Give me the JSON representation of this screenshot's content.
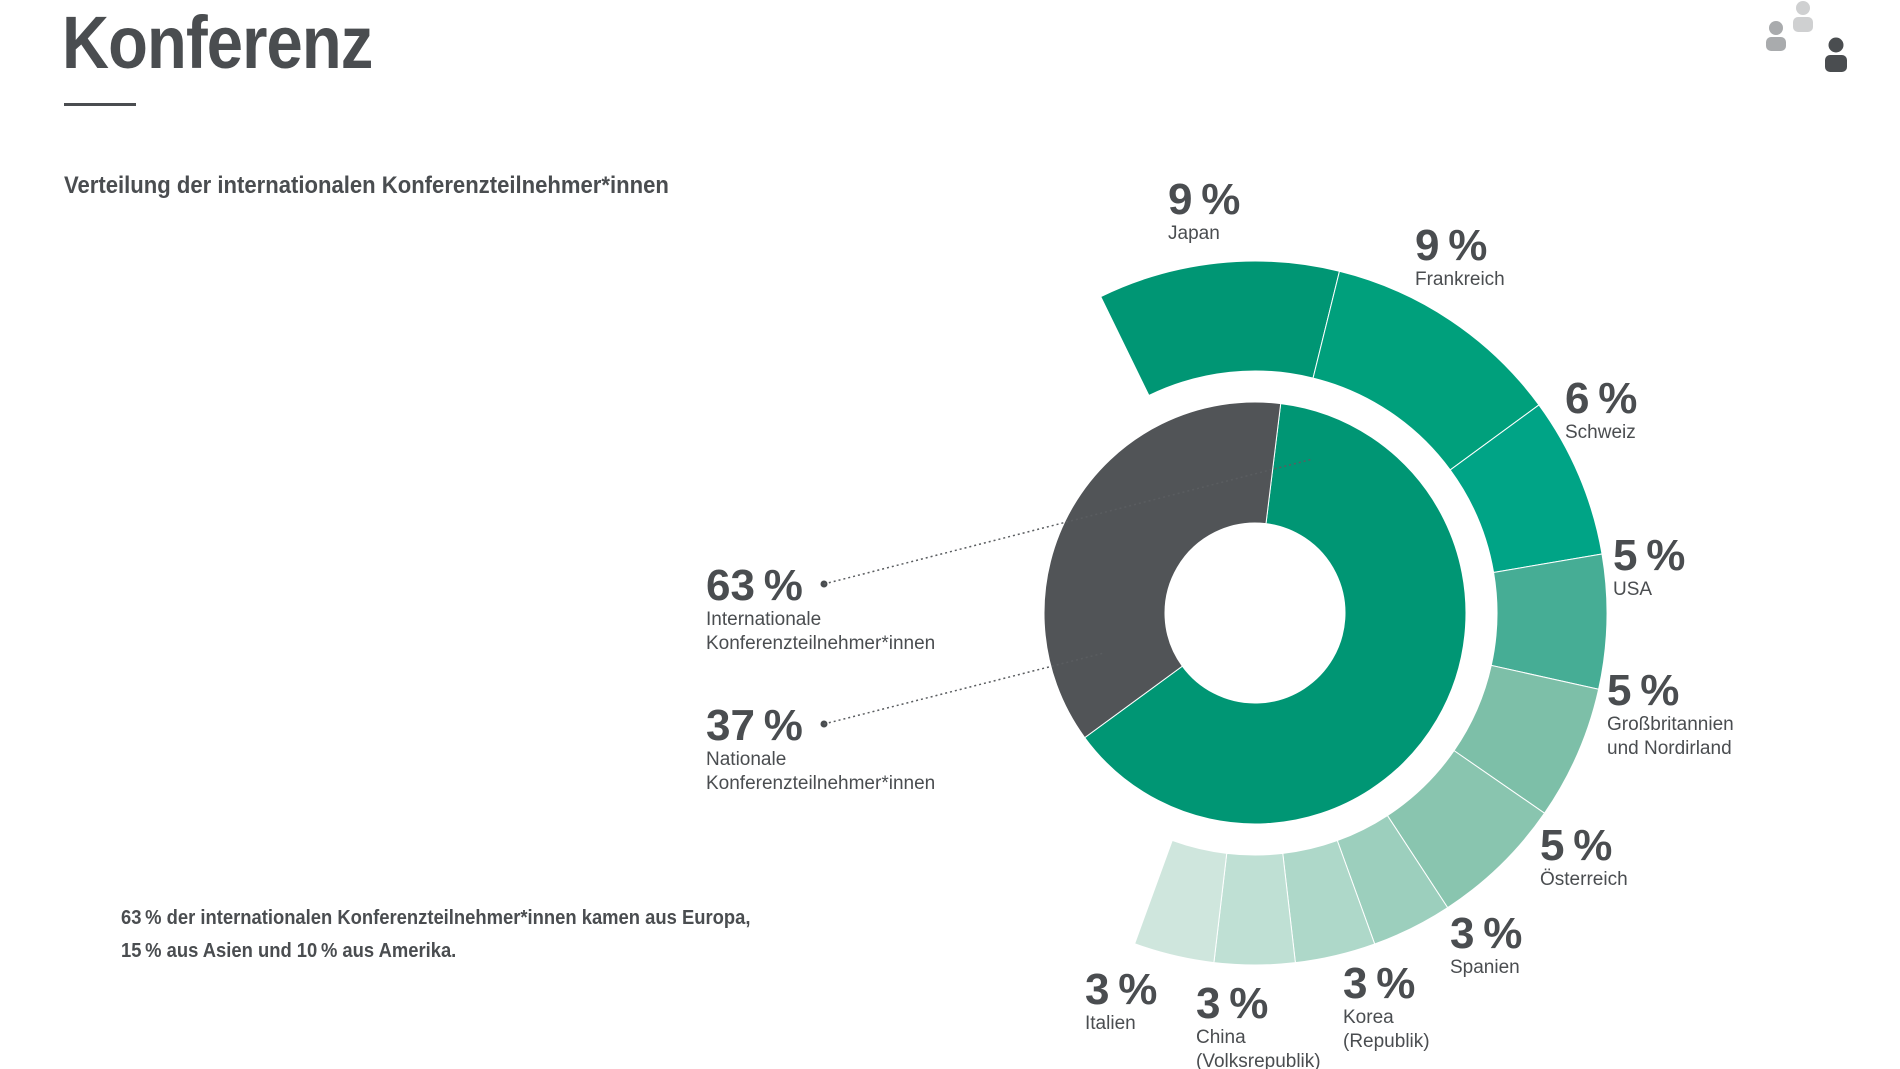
{
  "page": {
    "title": "Konferenz",
    "subtitle": "Verteilung der internationalen Konferenzteilnehmer*innen",
    "footnote_lines": [
      "63 % der internationalen Konferenzteilnehmer*innen kamen aus Europa,",
      "15 % aus Asien und 10 % aus Amerika."
    ],
    "icon": "people-group-icon"
  },
  "chart_data": [
    {
      "type": "pie",
      "variant": "donut",
      "title": "",
      "series": [
        {
          "name": "",
          "values": [
            63,
            37
          ],
          "labels": [
            "Internationale Konferenzteilnehmer*innen",
            "Nationale Konferenzteilnehmer*innen"
          ],
          "label_lines": [
            [
              "Internationale",
              "Konferenzteilnehmer*innen"
            ],
            [
              "Nationale",
              "Konferenzteilnehmer*innen"
            ]
          ],
          "display": [
            "63 %",
            "37 %"
          ],
          "colors": [
            "#009674",
            "#515457"
          ]
        }
      ]
    },
    {
      "type": "pie",
      "variant": "partial-ring",
      "title": "",
      "series": [
        {
          "name": "",
          "values": [
            9,
            9,
            6,
            5,
            5,
            5,
            3,
            3,
            3,
            3
          ],
          "labels": [
            "Japan",
            "Frankreich",
            "Schweiz",
            "USA",
            "Großbritannien und Nordirland",
            "Österreich",
            "Spanien",
            "Korea (Republik)",
            "China (Volksrepublik)",
            "Italien"
          ],
          "label_lines": [
            [
              "Japan"
            ],
            [
              "Frankreich"
            ],
            [
              "Schweiz"
            ],
            [
              "USA"
            ],
            [
              "Großbritannien",
              "und Nordirland"
            ],
            [
              "Österreich"
            ],
            [
              "Spanien"
            ],
            [
              "Korea",
              "(Republik)"
            ],
            [
              "China",
              "(Volksrepublik)"
            ],
            [
              "Italien"
            ]
          ],
          "display": [
            "9 %",
            "9 %",
            "6 %",
            "5 %",
            "5 %",
            "5 %",
            "3 %",
            "3 %",
            "3 %",
            "3 %"
          ],
          "colors": [
            "#009674",
            "#00a07c",
            "#00a486",
            "#46ad95",
            "#7dbfa8",
            "#89c5af",
            "#9ccfbd",
            "#aed8c9",
            "#bfe0d4",
            "#cfe6dd"
          ]
        }
      ]
    }
  ]
}
